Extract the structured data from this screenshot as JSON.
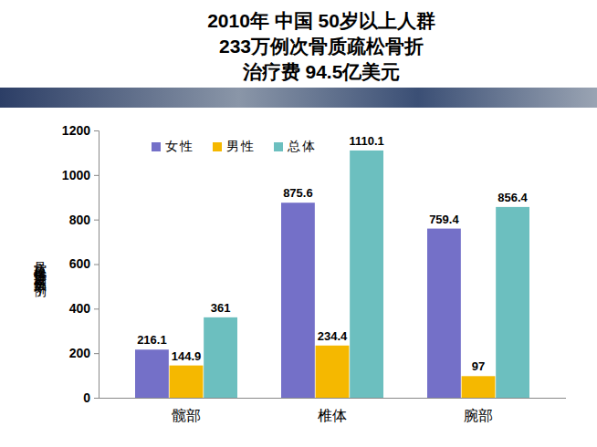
{
  "chart_data": {
    "type": "bar",
    "title": [
      "2010年 中国 50岁以上人群",
      "233万例次骨质疏松骨折",
      "治疗费 94.5亿美元"
    ],
    "y_label": "骨质疏松性骨折发生例数（千例）",
    "categories": [
      "髋部",
      "椎体",
      "腕部"
    ],
    "series": [
      {
        "name": "女性",
        "color": "#7470c8",
        "values": [
          216.1,
          875.6,
          759.4
        ]
      },
      {
        "name": "男性",
        "color": "#f5b800",
        "values": [
          144.9,
          234.4,
          97
        ]
      },
      {
        "name": "总体",
        "color": "#6cbfbf",
        "values": [
          361,
          1110.1,
          856.4
        ]
      }
    ],
    "ylim": [
      0,
      1200
    ],
    "yticks": [
      0,
      200,
      400,
      600,
      800,
      1000,
      1200
    ],
    "grid": false,
    "legend": "top-left",
    "data_labels": true
  }
}
